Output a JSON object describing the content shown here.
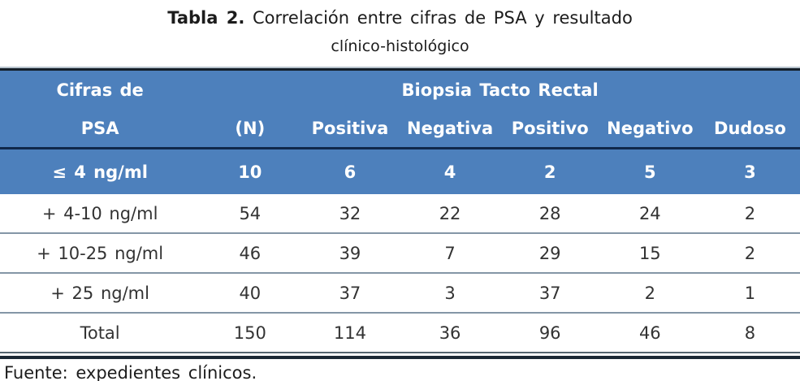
{
  "caption": {
    "label": "Tabla 2.",
    "text": " Correlación entre cifras de PSA y resultado",
    "line2": "clínico-histológico"
  },
  "table": {
    "header": {
      "left_line1": "Cifras de",
      "left_line2": "PSA",
      "span_label": "Biopsia Tacto Rectal",
      "n_label": "(N)",
      "columns": [
        "Positiva",
        "Negativa",
        "Positivo",
        "Negativo",
        "Dudoso"
      ]
    },
    "rows": [
      {
        "cells": [
          "≤ 4 ng/ml",
          "10",
          "6",
          "4",
          "2",
          "5",
          "3"
        ]
      },
      {
        "cells": [
          "+ 4-10 ng/ml",
          "54",
          "32",
          "22",
          "28",
          "24",
          "2"
        ]
      },
      {
        "cells": [
          "+ 10-25 ng/ml",
          "46",
          "39",
          "7",
          "29",
          "15",
          "2"
        ]
      },
      {
        "cells": [
          "+ 25 ng/ml",
          "40",
          "37",
          "3",
          "37",
          "2",
          "1"
        ]
      },
      {
        "cells": [
          "Total",
          "150",
          "114",
          "36",
          "96",
          "46",
          "8"
        ]
      }
    ]
  },
  "footer": {
    "source": "Fuente: expedientes clínicos."
  },
  "colors": {
    "header_blue": "#4d80bc",
    "dark_navy_border": "#10284a",
    "top_border": "#141e28",
    "row_separator": "#8496a6",
    "body_text": "#333333",
    "header_text": "#ffffff"
  },
  "chart_data": {
    "type": "table",
    "title": "Tabla 2. Correlación entre cifras de PSA y resultado clínico-histológico",
    "columns": [
      "Cifras de PSA",
      "(N)",
      "Biopsia Positiva",
      "Biopsia Negativa",
      "Tacto Rectal Positivo",
      "Tacto Rectal Negativo",
      "Tacto Rectal Dudoso"
    ],
    "rows": [
      [
        "≤ 4 ng/ml",
        10,
        6,
        4,
        2,
        5,
        3
      ],
      [
        "+ 4-10 ng/ml",
        54,
        32,
        22,
        28,
        24,
        2
      ],
      [
        "+ 10-25 ng/ml",
        46,
        39,
        7,
        29,
        15,
        2
      ],
      [
        "+ 25 ng/ml",
        40,
        37,
        3,
        37,
        2,
        1
      ],
      [
        "Total",
        150,
        114,
        36,
        96,
        46,
        8
      ]
    ],
    "source": "Fuente: expedientes clínicos."
  }
}
